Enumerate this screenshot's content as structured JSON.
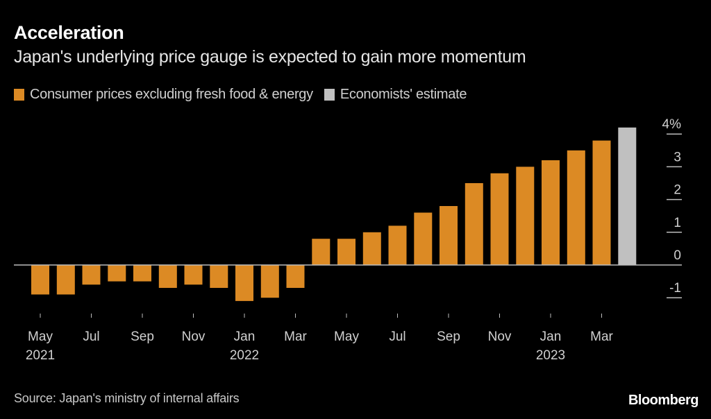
{
  "colors": {
    "background": "#000000",
    "actual": "#dc8a24",
    "estimate": "#c0c0c0",
    "axis": "#bdbdbd",
    "text": "#d0d0d0"
  },
  "header": {
    "title": "Acceleration",
    "subtitle": "Japan's underlying price gauge is expected to gain more momentum"
  },
  "legend": [
    {
      "label": "Consumer prices excluding fresh food & energy",
      "color": "#dc8a24"
    },
    {
      "label": "Economists' estimate",
      "color": "#c0c0c0"
    }
  ],
  "footer": {
    "source": "Source: Japan's ministry of internal affairs",
    "brand": "Bloomberg"
  },
  "chart_data": {
    "type": "bar",
    "title": "Acceleration",
    "subtitle": "Japan's underlying price gauge is expected to gain more momentum",
    "xlabel": "",
    "ylabel": "",
    "ylim": [
      -1.5,
      4.3
    ],
    "yticks": [
      -1,
      0,
      1,
      2,
      3,
      4
    ],
    "ytick_labels": [
      "-1",
      "0",
      "1",
      "2",
      "3",
      "4%"
    ],
    "yaxis_position": "right",
    "grid": false,
    "legend_position": "top-left",
    "categories": [
      "May 2021",
      "Jun 2021",
      "Jul 2021",
      "Aug 2021",
      "Sep 2021",
      "Oct 2021",
      "Nov 2021",
      "Dec 2021",
      "Jan 2022",
      "Feb 2022",
      "Mar 2022",
      "Apr 2022",
      "May 2022",
      "Jun 2022",
      "Jul 2022",
      "Aug 2022",
      "Sep 2022",
      "Oct 2022",
      "Nov 2022",
      "Dec 2022",
      "Jan 2023",
      "Feb 2023",
      "Mar 2023",
      "Apr 2023"
    ],
    "xtick_labels": [
      {
        "index": 0,
        "month": "May",
        "year": "2021"
      },
      {
        "index": 2,
        "month": "Jul",
        "year": ""
      },
      {
        "index": 4,
        "month": "Sep",
        "year": ""
      },
      {
        "index": 6,
        "month": "Nov",
        "year": ""
      },
      {
        "index": 8,
        "month": "Jan",
        "year": "2022"
      },
      {
        "index": 10,
        "month": "Mar",
        "year": ""
      },
      {
        "index": 12,
        "month": "May",
        "year": ""
      },
      {
        "index": 14,
        "month": "Jul",
        "year": ""
      },
      {
        "index": 16,
        "month": "Sep",
        "year": ""
      },
      {
        "index": 18,
        "month": "Nov",
        "year": ""
      },
      {
        "index": 20,
        "month": "Jan",
        "year": "2023"
      },
      {
        "index": 22,
        "month": "Mar",
        "year": ""
      }
    ],
    "series": [
      {
        "name": "Consumer prices excluding fresh food & energy",
        "values": [
          -0.9,
          -0.9,
          -0.6,
          -0.5,
          -0.5,
          -0.7,
          -0.6,
          -0.7,
          -1.1,
          -1.0,
          -0.7,
          0.8,
          0.8,
          1.0,
          1.2,
          1.6,
          1.8,
          2.5,
          2.8,
          3.0,
          3.2,
          3.5,
          3.8,
          null
        ]
      },
      {
        "name": "Economists' estimate",
        "values": [
          null,
          null,
          null,
          null,
          null,
          null,
          null,
          null,
          null,
          null,
          null,
          null,
          null,
          null,
          null,
          null,
          null,
          null,
          null,
          null,
          null,
          null,
          null,
          4.2
        ]
      }
    ]
  }
}
